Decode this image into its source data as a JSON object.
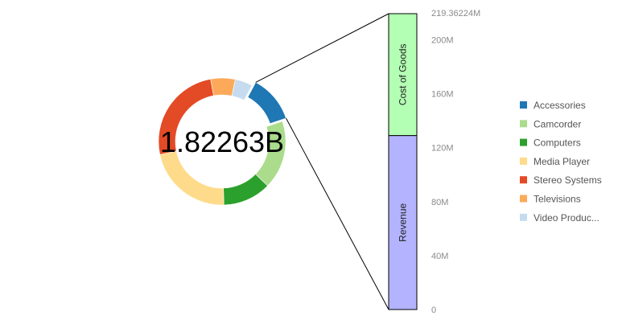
{
  "chart_data": [
    {
      "type": "pie",
      "donut": true,
      "center_label": "1.82263B",
      "slices": [
        {
          "name": "Accessories",
          "color": "#1f77b4",
          "value": 0.1205
        },
        {
          "name": "Camcorder",
          "color": "#aadc8c",
          "value": 0.1745
        },
        {
          "name": "Computers",
          "color": "#2ca02c",
          "value": 0.1225
        },
        {
          "name": "Media Player",
          "color": "#fedb8a",
          "value": 0.2215
        },
        {
          "name": "Stereo Systems",
          "color": "#e34a26",
          "value": 0.254
        },
        {
          "name": "Televisions",
          "color": "#fcaa5a",
          "value": 0.0625
        },
        {
          "name": "Video Production",
          "color": "#c6dbef",
          "value": 0.0445
        }
      ],
      "exploded_slice": "Accessories"
    },
    {
      "type": "bar",
      "stacked": true,
      "categories": [
        "Accessories"
      ],
      "series": [
        {
          "name": "Revenue",
          "color": "#b3b3ff",
          "value": 129000000
        },
        {
          "name": "Cost of Goods",
          "color": "#b3ffb3",
          "value": 90362240
        }
      ],
      "ylim": [
        0,
        219362240
      ],
      "yticks": [
        0,
        40000000,
        80000000,
        120000000,
        160000000,
        200000000
      ],
      "ytick_labels": [
        "0",
        "40M",
        "80M",
        "120M",
        "160M",
        "200M"
      ],
      "ymax_label": "219.36224M"
    }
  ],
  "legend": {
    "position": "right",
    "items": [
      {
        "label": "Accessories",
        "color": "#1f77b4"
      },
      {
        "label": "Camcorder",
        "color": "#aadc8c"
      },
      {
        "label": "Computers",
        "color": "#2ca02c"
      },
      {
        "label": "Media Player",
        "color": "#fedb8a"
      },
      {
        "label": "Stereo Systems",
        "color": "#e34a26"
      },
      {
        "label": "Televisions",
        "color": "#fcaa5a"
      },
      {
        "label": "Video Produc...",
        "color": "#c6dbef"
      }
    ]
  }
}
